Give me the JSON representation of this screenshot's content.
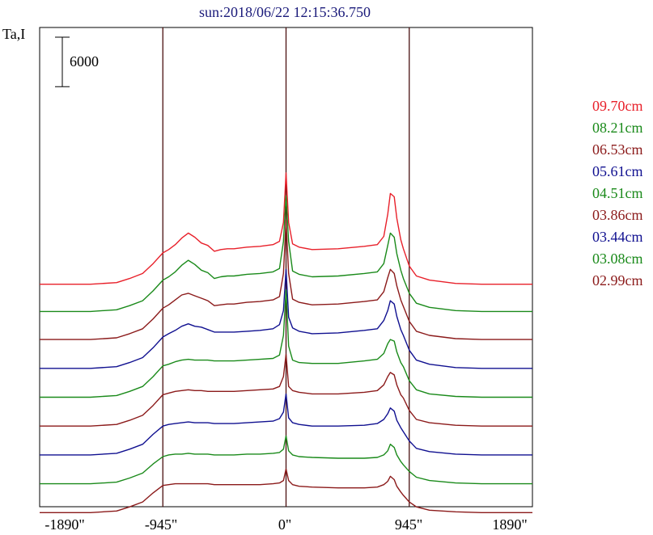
{
  "chart_data": {
    "type": "line",
    "title": "sun:2018/06/22 12:15:36.750",
    "ylabel": "Ta,I",
    "scale_bar_label": "6000",
    "scale_bar_value": 6000,
    "xlim": [
      -1890,
      1890
    ],
    "x_ticks": [
      -1890,
      -945,
      0,
      945,
      1890
    ],
    "x_tick_labels": [
      "-1890\"",
      "-945\"",
      "0\"",
      "945\"",
      "1890\""
    ],
    "vertical_markers": [
      -945,
      0,
      945
    ],
    "grid": false,
    "legend_position": "right",
    "x": [
      -1890,
      -1500,
      -1300,
      -1200,
      -1100,
      -1020,
      -945,
      -900,
      -850,
      -800,
      -750,
      -700,
      -650,
      -600,
      -550,
      -500,
      -450,
      -400,
      -300,
      -200,
      -100,
      -50,
      -20,
      0,
      20,
      50,
      100,
      200,
      400,
      600,
      700,
      750,
      780,
      800,
      830,
      850,
      880,
      900,
      945,
      1000,
      1100,
      1300,
      1500,
      1890
    ],
    "series": [
      {
        "name": "09.70cm",
        "color": "#e8202a",
        "offset": 26000,
        "values": [
          0,
          0,
          200,
          700,
          1300,
          2500,
          3800,
          4200,
          4800,
          5600,
          6200,
          5700,
          5000,
          4700,
          4000,
          4200,
          4300,
          4300,
          4500,
          4600,
          4800,
          5200,
          7500,
          13500,
          7500,
          4900,
          4500,
          4200,
          4300,
          4600,
          4800,
          5800,
          8500,
          11000,
          10600,
          8000,
          5400,
          4300,
          2200,
          1000,
          500,
          100,
          0,
          0
        ]
      },
      {
        "name": "08.21cm",
        "color": "#1a8a1a",
        "offset": 22700,
        "values": [
          0,
          0,
          200,
          700,
          1300,
          2500,
          3800,
          4200,
          4800,
          5600,
          6200,
          5700,
          5000,
          4700,
          4000,
          4200,
          4300,
          4300,
          4500,
          4600,
          4800,
          5200,
          8500,
          14000,
          8500,
          4900,
          4500,
          4200,
          4300,
          4600,
          4800,
          5800,
          8000,
          9500,
          9000,
          7000,
          5000,
          4000,
          2200,
          1000,
          500,
          100,
          0,
          0
        ]
      },
      {
        "name": "06.53cm",
        "color": "#8b1a1a",
        "offset": 19300,
        "values": [
          0,
          0,
          200,
          700,
          1300,
          2500,
          3800,
          4200,
          4800,
          5400,
          5600,
          5300,
          5000,
          4700,
          4100,
          4200,
          4300,
          4300,
          4500,
          4600,
          4800,
          5200,
          8000,
          14500,
          8000,
          4900,
          4500,
          4200,
          4300,
          4600,
          4800,
          5800,
          7500,
          8500,
          8000,
          6500,
          4800,
          4000,
          2200,
          1000,
          500,
          100,
          0,
          0
        ]
      },
      {
        "name": "05.61cm",
        "color": "#101090",
        "offset": 15800,
        "values": [
          0,
          0,
          200,
          700,
          1300,
          2500,
          3800,
          4200,
          4600,
          5100,
          5400,
          5100,
          5000,
          4700,
          4400,
          4400,
          4400,
          4400,
          4500,
          4600,
          4800,
          5300,
          7000,
          12000,
          6200,
          4900,
          4500,
          4200,
          4300,
          4600,
          4800,
          5800,
          7000,
          8200,
          7800,
          6300,
          4700,
          4000,
          2200,
          1000,
          500,
          100,
          0,
          0
        ]
      },
      {
        "name": "04.51cm",
        "color": "#1a8a1a",
        "offset": 12300,
        "values": [
          0,
          0,
          200,
          700,
          1300,
          2500,
          3800,
          4000,
          4300,
          4500,
          4600,
          4500,
          4500,
          4500,
          4400,
          4400,
          4400,
          4400,
          4500,
          4600,
          4700,
          5100,
          7500,
          13000,
          6200,
          4500,
          4200,
          4100,
          4100,
          4400,
          4600,
          5300,
          6500,
          7000,
          6800,
          5500,
          4200,
          3700,
          2000,
          900,
          400,
          100,
          0,
          0
        ]
      },
      {
        "name": "03.86cm",
        "color": "#8b1a1a",
        "offset": 8800,
        "values": [
          0,
          0,
          200,
          700,
          1300,
          2500,
          3800,
          4000,
          4200,
          4300,
          4400,
          4300,
          4300,
          4200,
          4200,
          4200,
          4200,
          4200,
          4300,
          4400,
          4500,
          4800,
          6000,
          8700,
          4800,
          4300,
          4100,
          3900,
          3900,
          4100,
          4300,
          5000,
          6000,
          6500,
          6200,
          5000,
          3800,
          3400,
          1900,
          800,
          400,
          100,
          0,
          0
        ]
      },
      {
        "name": "03.44cm",
        "color": "#101090",
        "offset": 5300,
        "values": [
          0,
          0,
          200,
          700,
          1300,
          2500,
          3500,
          3700,
          3800,
          3900,
          4000,
          3900,
          3900,
          3900,
          3800,
          3800,
          3800,
          3800,
          3900,
          4000,
          4100,
          4400,
          5200,
          7400,
          4500,
          3900,
          3700,
          3500,
          3500,
          3600,
          3800,
          4300,
          5000,
          5700,
          5300,
          4200,
          3300,
          2800,
          1700,
          800,
          400,
          100,
          0,
          0
        ]
      },
      {
        "name": "03.08cm",
        "color": "#1a8a1a",
        "offset": 1800,
        "values": [
          0,
          0,
          200,
          700,
          1300,
          2400,
          3300,
          3500,
          3600,
          3600,
          3700,
          3600,
          3600,
          3600,
          3500,
          3500,
          3500,
          3500,
          3600,
          3600,
          3700,
          3800,
          4200,
          5800,
          4000,
          3500,
          3300,
          3200,
          3100,
          3100,
          3200,
          3500,
          4000,
          4800,
          4400,
          3500,
          2700,
          2300,
          1500,
          800,
          400,
          100,
          0,
          0
        ]
      },
      {
        "name": "02.99cm",
        "color": "#8b1a1a",
        "offset": -1700,
        "values": [
          0,
          0,
          200,
          700,
          1300,
          2400,
          3300,
          3400,
          3500,
          3500,
          3500,
          3500,
          3500,
          3500,
          3400,
          3400,
          3400,
          3400,
          3400,
          3400,
          3500,
          3600,
          3900,
          5300,
          3900,
          3400,
          3200,
          3100,
          3000,
          3000,
          3100,
          3400,
          3800,
          4400,
          4000,
          3200,
          2500,
          2100,
          1300,
          700,
          300,
          100,
          0,
          0
        ]
      }
    ]
  }
}
